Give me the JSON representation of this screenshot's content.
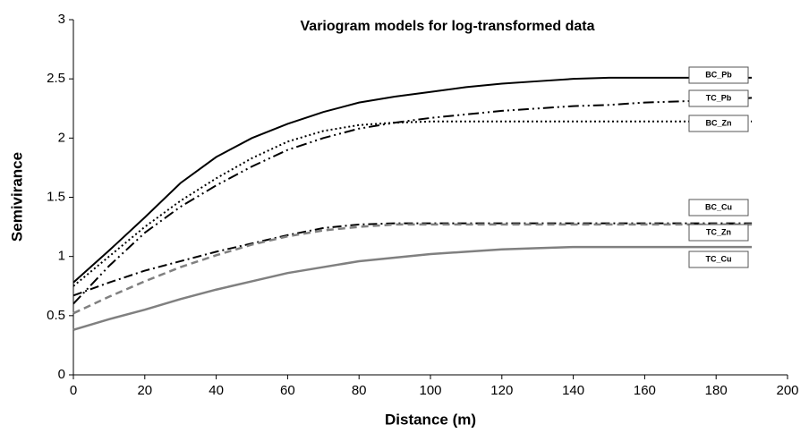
{
  "chart_data": {
    "type": "line",
    "title": "Variogram models for log-transformed  data",
    "xlabel": "Distance (m)",
    "ylabel": "Semivirance",
    "x": [
      0,
      10,
      20,
      30,
      40,
      50,
      60,
      70,
      80,
      90,
      100,
      110,
      120,
      130,
      140,
      150,
      160,
      170,
      180,
      190
    ],
    "series": [
      {
        "name": "BC_Pb",
        "color": "#000000",
        "dash": "solid",
        "values": [
          0.78,
          1.05,
          1.33,
          1.62,
          1.84,
          2.0,
          2.12,
          2.22,
          2.3,
          2.35,
          2.39,
          2.43,
          2.46,
          2.48,
          2.5,
          2.51,
          2.51,
          2.51,
          2.51,
          2.51
        ]
      },
      {
        "name": "TC_Pb",
        "color": "#000000",
        "dash": "dashdotdot",
        "values": [
          0.6,
          0.92,
          1.2,
          1.42,
          1.6,
          1.76,
          1.9,
          2.0,
          2.08,
          2.13,
          2.17,
          2.2,
          2.23,
          2.25,
          2.27,
          2.28,
          2.3,
          2.31,
          2.32,
          2.34
        ]
      },
      {
        "name": "BC_Zn",
        "color": "#000000",
        "dash": "dot",
        "values": [
          0.75,
          1.0,
          1.25,
          1.47,
          1.66,
          1.83,
          1.97,
          2.06,
          2.11,
          2.13,
          2.14,
          2.14,
          2.14,
          2.14,
          2.14,
          2.14,
          2.14,
          2.14,
          2.14,
          2.14
        ]
      },
      {
        "name": "BC_Cu",
        "color": "#000000",
        "dash": "dashdot",
        "values": [
          0.67,
          0.78,
          0.88,
          0.96,
          1.04,
          1.11,
          1.18,
          1.24,
          1.27,
          1.28,
          1.28,
          1.28,
          1.28,
          1.28,
          1.28,
          1.28,
          1.28,
          1.28,
          1.28,
          1.28
        ]
      },
      {
        "name": "TC_Zn",
        "color": "#808080",
        "dash": "dash",
        "values": [
          0.52,
          0.66,
          0.79,
          0.91,
          1.01,
          1.1,
          1.17,
          1.22,
          1.25,
          1.27,
          1.27,
          1.27,
          1.27,
          1.27,
          1.27,
          1.27,
          1.27,
          1.27,
          1.27,
          1.27
        ]
      },
      {
        "name": "TC_Cu",
        "color": "#808080",
        "dash": "solid",
        "values": [
          0.38,
          0.47,
          0.55,
          0.64,
          0.72,
          0.79,
          0.86,
          0.91,
          0.96,
          0.99,
          1.02,
          1.04,
          1.06,
          1.07,
          1.08,
          1.08,
          1.08,
          1.08,
          1.08,
          1.08
        ]
      }
    ],
    "xlim": [
      0,
      200
    ],
    "xticks": [
      0,
      20,
      40,
      60,
      80,
      100,
      120,
      140,
      160,
      180,
      200
    ],
    "ylim": [
      0,
      3
    ],
    "yticks": [
      0,
      0.5,
      1,
      1.5,
      2,
      2.5,
      3
    ]
  }
}
